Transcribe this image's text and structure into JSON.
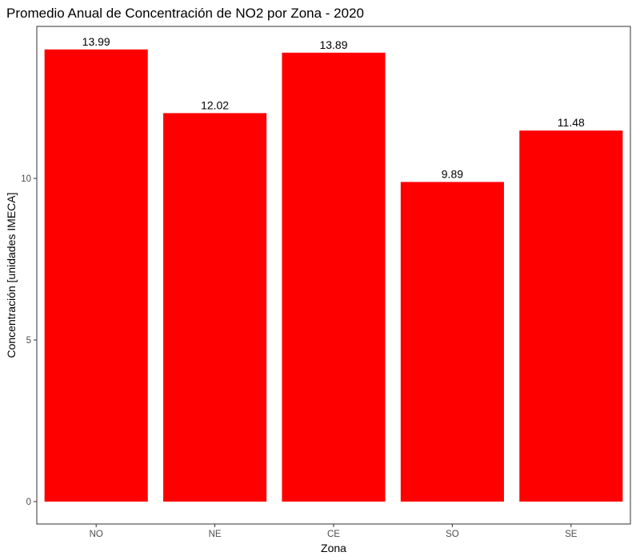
{
  "chart_data": {
    "type": "bar",
    "title": "Promedio Anual de Concentración de NO2 por Zona - 2020",
    "xlabel": "Zona",
    "ylabel": "Concentración [unidades IMECA]",
    "categories": [
      "NO",
      "NE",
      "CE",
      "SO",
      "SE"
    ],
    "values": [
      13.99,
      12.02,
      13.89,
      9.89,
      11.48
    ],
    "data_labels": [
      "13.99",
      "12.02",
      "13.89",
      "9.89",
      "11.48"
    ],
    "ylim": [
      0,
      14.69
    ],
    "yticks": [
      0,
      5,
      10
    ],
    "ytick_labels": [
      "0",
      "5",
      "10"
    ],
    "bar_color": "#FF0000",
    "grid": false,
    "legend": "none"
  }
}
